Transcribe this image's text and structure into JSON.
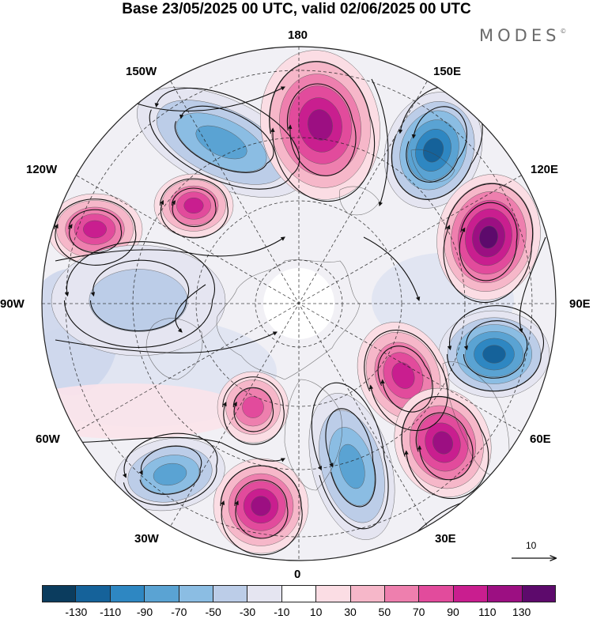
{
  "title": "Base 23/05/2025 00 UTC, valid 02/06/2025 00 UTC",
  "brand": {
    "name": "MODES",
    "mark": "©"
  },
  "map": {
    "projection": "north-polar-stereographic",
    "longitude_labels": {
      "top": "180",
      "top_left": "150W",
      "top_right": "150E",
      "upper_left": "120W",
      "upper_right": "120E",
      "left": "90W",
      "right": "90E",
      "lower_left": "60W",
      "lower_right": "60E",
      "bottom_left": "30W",
      "bottom_right": "30E",
      "bottom": "0"
    },
    "reference_vector": {
      "label": "10"
    },
    "grid_lines": "dashed",
    "coastlines": true,
    "streamlines": true
  },
  "colorbar": {
    "colors": [
      "#0b3c5e",
      "#15629a",
      "#2e87c2",
      "#5aa3d3",
      "#8bbde3",
      "#bccde8",
      "#e5e5f1",
      "#ffffff",
      "#fbdde4",
      "#f6b7c9",
      "#ee7fae",
      "#e24b9c",
      "#c91e8f",
      "#9c0f82",
      "#5d0a6c"
    ],
    "tick_labels": [
      "-130",
      "-110",
      "-90",
      "-70",
      "-50",
      "-30",
      "-10",
      "10",
      "30",
      "50",
      "70",
      "90",
      "110",
      "130"
    ]
  },
  "anomaly_centers": [
    {
      "sign": "negative",
      "strength": 70,
      "name": "blue-anomaly-150W"
    },
    {
      "sign": "negative",
      "strength": 110,
      "name": "blue-anomaly-150E"
    },
    {
      "sign": "positive",
      "strength": 110,
      "name": "pink-anomaly-180"
    },
    {
      "sign": "positive",
      "strength": 130,
      "name": "pink-anomaly-120E"
    },
    {
      "sign": "negative",
      "strength": 110,
      "name": "blue-anomaly-90E"
    },
    {
      "sign": "positive",
      "strength": 90,
      "name": "pink-anomaly-70E"
    },
    {
      "sign": "positive",
      "strength": 110,
      "name": "pink-anomaly-60E"
    },
    {
      "sign": "negative",
      "strength": 70,
      "name": "blue-anomaly-30E"
    },
    {
      "sign": "positive",
      "strength": 110,
      "name": "pink-anomaly-15W"
    },
    {
      "sign": "negative",
      "strength": 70,
      "name": "blue-anomaly-45W"
    },
    {
      "sign": "positive",
      "strength": 70,
      "name": "pink-anomaly-30W"
    },
    {
      "sign": "positive",
      "strength": 90,
      "name": "pink-anomaly-120W"
    },
    {
      "sign": "positive",
      "strength": 90,
      "name": "pink-anomaly-110W"
    },
    {
      "sign": "negative",
      "strength": 30,
      "name": "blue-anomaly-80W"
    }
  ]
}
